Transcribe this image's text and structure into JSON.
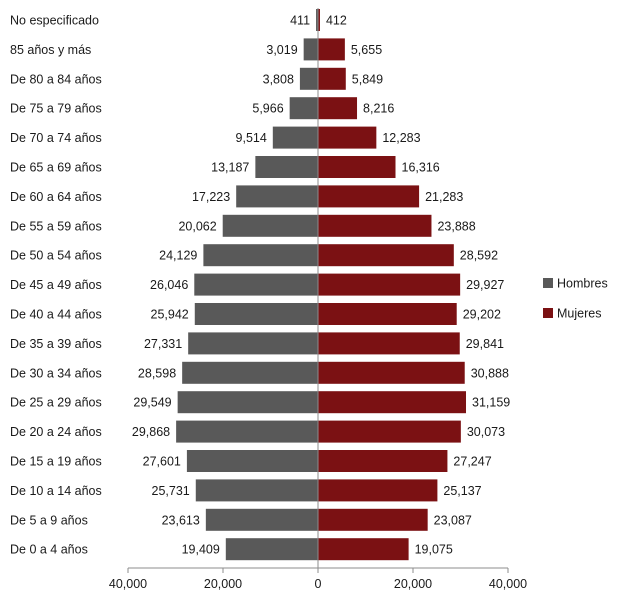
{
  "chart_data": {
    "type": "bar",
    "orientation": "horizontal",
    "layout": "population-pyramid",
    "categories": [
      "No especificado",
      "85 años y más",
      "De 80 a 84 años",
      "De 75 a 79 años",
      "De 70 a 74 años",
      "De 65 a 69 años",
      "De 60 a 64 años",
      "De 55 a 59 años",
      "De 50 a 54 años",
      "De 45 a 49 años",
      "De 40 a 44 años",
      "De 35 a 39 años",
      "De 30 a 34 años",
      "De 25 a 29 años",
      "De 20 a 24 años",
      "De 15 a 19 años",
      "De 10 a 14 años",
      "De 5 a 9 años",
      "De 0 a 4 años"
    ],
    "series": [
      {
        "name": "Hombres",
        "color": "#595959",
        "side": "left",
        "values": [
          411,
          3019,
          3808,
          5966,
          9514,
          13187,
          17223,
          20062,
          24129,
          26046,
          25942,
          27331,
          28598,
          29549,
          29868,
          27601,
          25731,
          23613,
          19409
        ],
        "labels": [
          "411",
          "3,019",
          "3,808",
          "5,966",
          "9,514",
          "13,187",
          "17,223",
          "20,062",
          "24,129",
          "26,046",
          "25,942",
          "27,331",
          "28,598",
          "29,549",
          "29,868",
          "27,601",
          "25,731",
          "23,613",
          "19,409"
        ]
      },
      {
        "name": "Mujeres",
        "color": "#7b1113",
        "side": "right",
        "values": [
          412,
          5655,
          5849,
          8216,
          12283,
          16316,
          21283,
          23888,
          28592,
          29927,
          29202,
          29841,
          30888,
          31159,
          30073,
          27247,
          25137,
          23087,
          19075
        ],
        "labels": [
          "412",
          "5,655",
          "5,849",
          "8,216",
          "12,283",
          "16,316",
          "21,283",
          "23,888",
          "28,592",
          "29,927",
          "29,202",
          "29,841",
          "30,888",
          "31,159",
          "30,073",
          "27,247",
          "25,137",
          "23,087",
          "19,075"
        ]
      }
    ],
    "xlim": [
      -40000,
      40000
    ],
    "x_ticks": [
      -40000,
      -20000,
      0,
      20000,
      40000
    ],
    "x_tick_labels": [
      "40,000",
      "20,000",
      "0",
      "20,000",
      "40,000"
    ],
    "legend": {
      "placement": "right",
      "entries": [
        "Hombres",
        "Mujeres"
      ]
    },
    "grid": false
  }
}
